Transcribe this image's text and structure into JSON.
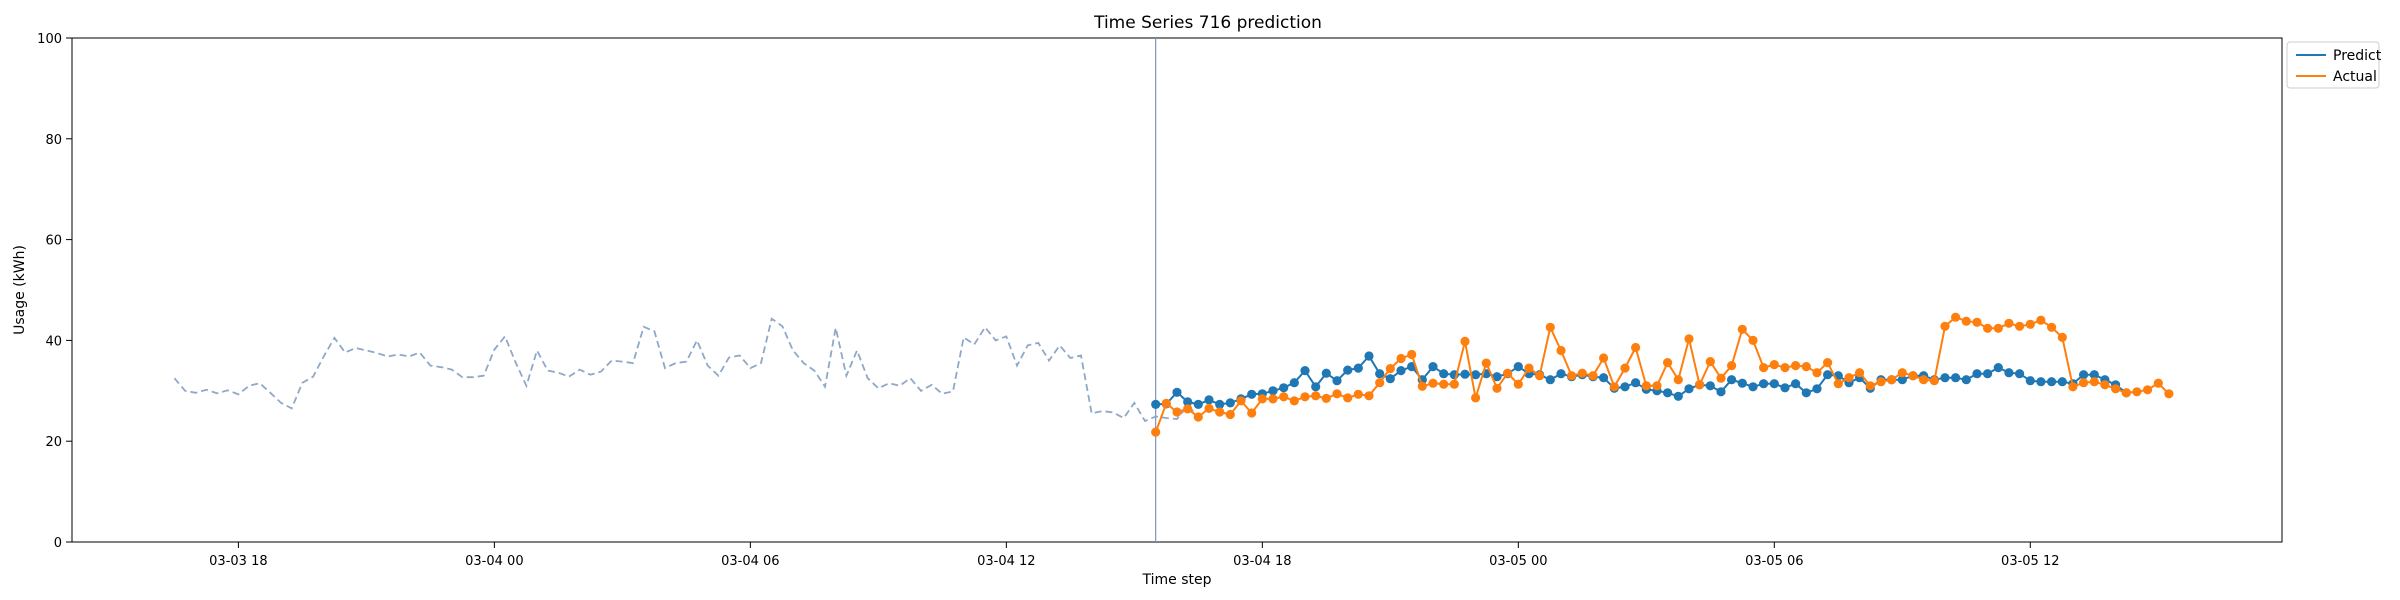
{
  "chart_data": {
    "type": "line",
    "title": "Time Series 716 prediction",
    "xlabel": "Time step",
    "ylabel": "Usage (kWh)",
    "ylim": [
      0,
      100
    ],
    "yticks": [
      0,
      20,
      40,
      60,
      80,
      100
    ],
    "xlim": [
      "2024-03-03 14:06",
      "2024-03-05 17:54"
    ],
    "xticks": [
      {
        "t": "2024-03-03 18:00",
        "label": "03-03 18"
      },
      {
        "t": "2024-03-04 00:00",
        "label": "03-04 00"
      },
      {
        "t": "2024-03-04 06:00",
        "label": "03-04 06"
      },
      {
        "t": "2024-03-04 12:00",
        "label": "03-04 12"
      },
      {
        "t": "2024-03-04 18:00",
        "label": "03-04 18"
      },
      {
        "t": "2024-03-05 00:00",
        "label": "03-05 00"
      },
      {
        "t": "2024-03-05 06:00",
        "label": "03-05 06"
      },
      {
        "t": "2024-03-05 12:00",
        "label": "03-05 12"
      }
    ],
    "grid": false,
    "legend": "upper-right-outside",
    "forecast_start": "2024-03-04 15:30",
    "history": {
      "start": "2024-03-03 16:30",
      "step_minutes": 15,
      "style": "dashed",
      "color": "#8fa8c8",
      "values": [
        32.5,
        30.0,
        29.6,
        30.2,
        29.5,
        30.1,
        29.3,
        31.0,
        31.5,
        29.6,
        27.6,
        26.5,
        31.6,
        32.8,
        36.8,
        40.5,
        37.6,
        38.5,
        38.0,
        37.5,
        36.8,
        37.2,
        36.8,
        37.6,
        35.0,
        34.7,
        34.2,
        32.7,
        32.7,
        33.0,
        38.2,
        40.8,
        35.6,
        31.0,
        38.0,
        34.0,
        33.6,
        32.8,
        34.2,
        33.2,
        33.8,
        36.0,
        35.8,
        35.5,
        42.7,
        41.8,
        34.5,
        35.5,
        35.8,
        40.0,
        35.0,
        33.0,
        36.6,
        37.0,
        34.5,
        35.5,
        44.3,
        42.8,
        38.0,
        35.5,
        34.0,
        30.8,
        42.5,
        33.0,
        38.0,
        32.5,
        30.5,
        31.5,
        31.0,
        32.5,
        30.0,
        31.2,
        29.4,
        29.9,
        40.6,
        39.2,
        42.6,
        40.0,
        40.8,
        35.0,
        39.0,
        39.5,
        36.0,
        39.0,
        36.5,
        37.0,
        25.5,
        26.0,
        25.7,
        24.6,
        27.6,
        24.0,
        24.9,
        24.6,
        24.4,
        27.0,
        25.0
      ]
    },
    "series": [
      {
        "name": "Predict",
        "color": "#1f77b4",
        "start": "2024-03-04 15:30",
        "step_minutes": 15,
        "values": [
          27.3,
          27.4,
          29.7,
          27.8,
          27.3,
          28.2,
          27.3,
          27.6,
          28.4,
          29.3,
          29.4,
          30.0,
          30.6,
          31.6,
          34.0,
          30.8,
          33.5,
          32.0,
          34.1,
          34.5,
          36.9,
          33.4,
          32.4,
          34.0,
          34.8,
          32.2,
          34.8,
          33.4,
          33.2,
          33.3,
          33.2,
          33.4,
          32.8,
          33.4,
          34.8,
          33.4,
          33.2,
          32.2,
          33.4,
          32.8,
          33.2,
          32.8,
          32.6,
          30.5,
          30.8,
          31.6,
          30.3,
          30.0,
          29.6,
          28.9,
          30.4,
          31.2,
          31.0,
          29.8,
          32.2,
          31.5,
          30.8,
          31.4,
          31.4,
          30.6,
          31.4,
          29.6,
          30.4,
          33.2,
          33.0,
          31.6,
          32.6,
          30.5,
          32.2,
          32.2,
          32.2,
          33.0,
          33.0,
          32.2,
          32.6,
          32.6,
          32.2,
          33.4,
          33.4,
          34.6,
          33.6,
          33.4,
          32.0,
          31.8,
          31.8,
          31.8,
          31.4,
          33.2,
          33.2,
          32.2,
          31.2,
          29.6
        ]
      },
      {
        "name": "Actual",
        "color": "#ff7f0e",
        "start": "2024-03-04 15:30",
        "step_minutes": 15,
        "values": [
          21.8,
          27.5,
          25.8,
          26.4,
          24.8,
          26.5,
          25.8,
          25.3,
          28.0,
          25.6,
          28.4,
          28.4,
          28.8,
          28.0,
          28.8,
          29.0,
          28.5,
          29.4,
          28.6,
          29.3,
          29.0,
          31.6,
          34.4,
          36.4,
          37.2,
          30.9,
          31.5,
          31.3,
          31.3,
          39.8,
          28.6,
          35.5,
          30.5,
          33.5,
          31.3,
          34.5,
          33.0,
          42.6,
          38.0,
          33.0,
          33.5,
          33.0,
          36.5,
          30.8,
          34.5,
          38.6,
          31.0,
          31.0,
          35.6,
          32.2,
          40.3,
          31.2,
          35.8,
          32.5,
          35.0,
          42.2,
          40.0,
          34.6,
          35.2,
          34.6,
          35.0,
          34.8,
          33.6,
          35.6,
          31.4,
          32.6,
          33.6,
          31.0,
          31.8,
          32.2,
          33.6,
          33.0,
          32.2,
          32.0,
          42.8,
          44.6,
          43.8,
          43.6,
          42.4,
          42.4,
          43.4,
          42.8,
          43.2,
          44.0,
          42.6,
          40.6,
          30.8,
          31.6,
          31.8,
          31.2,
          30.4,
          29.6,
          29.8,
          30.2,
          31.5,
          29.4
        ]
      }
    ]
  }
}
